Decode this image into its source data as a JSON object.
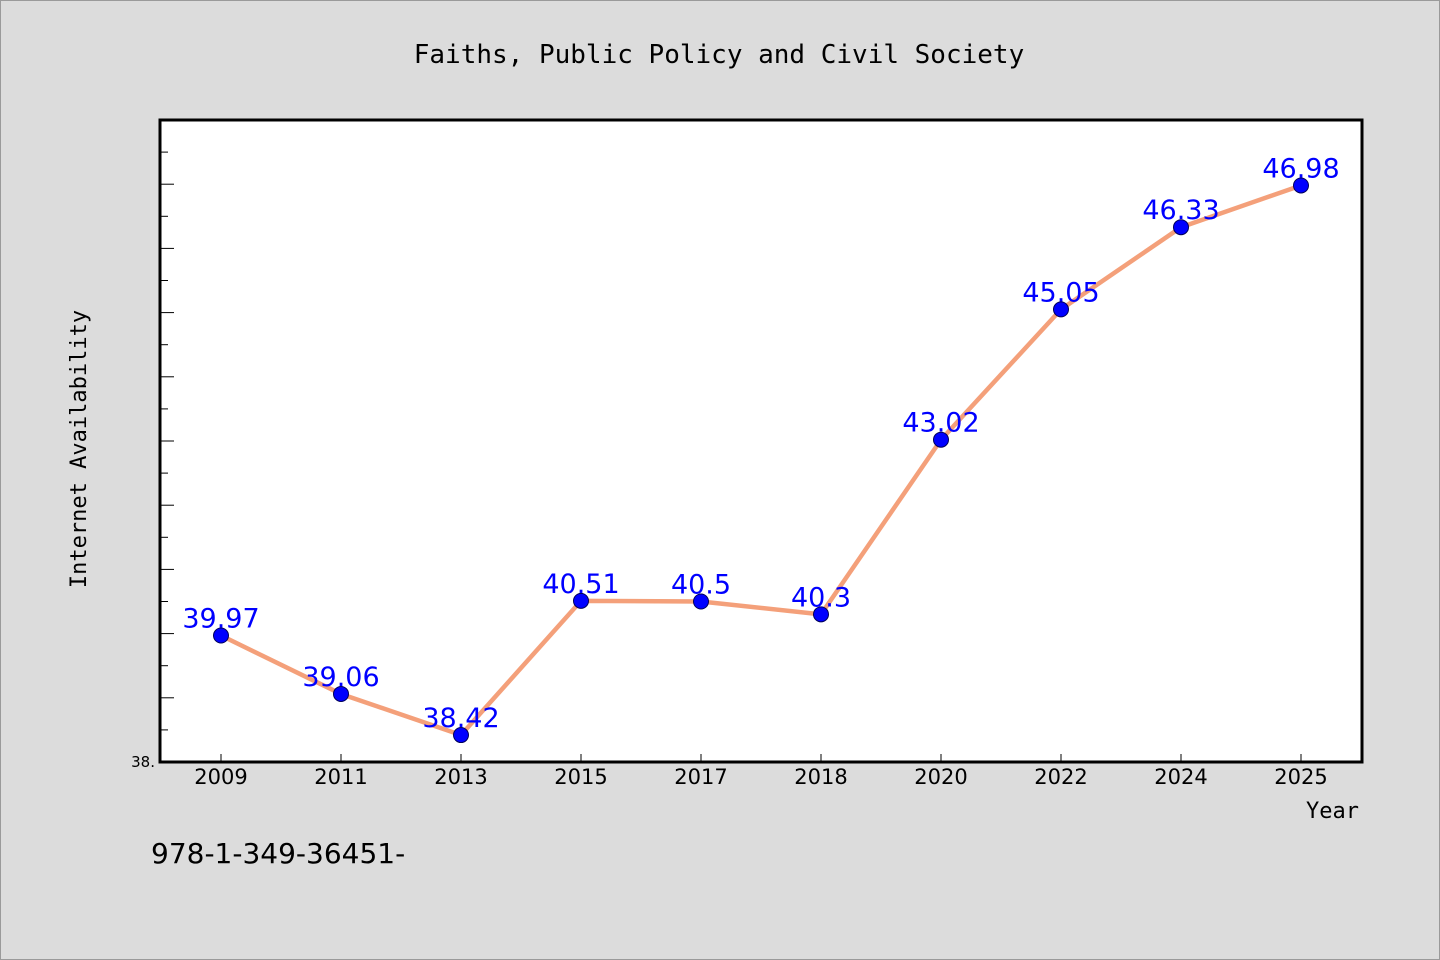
{
  "chart_data": {
    "type": "line",
    "title": "Faiths, Public Policy and Civil Society",
    "xlabel": "Year",
    "ylabel": "Internet Availability",
    "categories": [
      "2009",
      "2011",
      "2013",
      "2015",
      "2017",
      "2018",
      "2020",
      "2022",
      "2024",
      "2025"
    ],
    "series": [
      {
        "values": [
          39.97,
          39.06,
          38.42,
          40.51,
          40.5,
          40.3,
          43.02,
          45.05,
          46.33,
          46.98
        ],
        "data_labels": [
          "39.97",
          "39.06",
          "38.42",
          "40.51",
          "40.5",
          "40.3",
          "43.02",
          "45.05",
          "46.33",
          "46.98"
        ]
      }
    ],
    "ylim": [
      38.0,
      48.0
    ],
    "y_tick_label": "38.",
    "grid": false,
    "legend": "none",
    "colors": {
      "line": "#f4a07a",
      "marker": "#0000ff",
      "data_label": "#0000ff",
      "background": "#dcdcdc",
      "plot_background": "#ffffff"
    }
  },
  "footer_text": "978-1-349-36451-"
}
